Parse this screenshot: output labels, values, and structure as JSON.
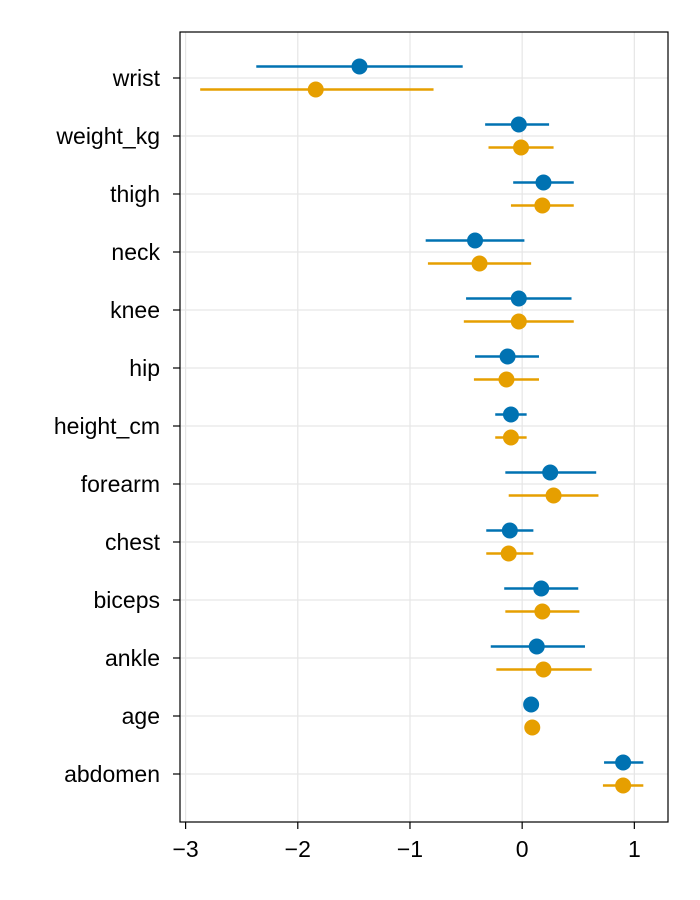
{
  "chart_data": {
    "type": "scatter",
    "subtype": "forest-plot-with-intervals",
    "title": "",
    "xlabel": "",
    "ylabel": "",
    "xlim": [
      -3.05,
      1.3
    ],
    "xticks": [
      -3,
      -2,
      -1,
      0,
      1
    ],
    "xtick_labels": [
      "−3",
      "−2",
      "−1",
      "0",
      "1"
    ],
    "grid": true,
    "legend": "none",
    "categories": [
      "wrist",
      "weight_kg",
      "thigh",
      "neck",
      "knee",
      "hip",
      "height_cm",
      "forearm",
      "chest",
      "biceps",
      "ankle",
      "age",
      "abdomen"
    ],
    "series": [
      {
        "color": "#0072b2",
        "points": [
          {
            "category": "wrist",
            "estimate": -1.45,
            "lower": -2.37,
            "upper": -0.53
          },
          {
            "category": "weight_kg",
            "estimate": -0.03,
            "lower": -0.33,
            "upper": 0.24
          },
          {
            "category": "thigh",
            "estimate": 0.19,
            "lower": -0.08,
            "upper": 0.46
          },
          {
            "category": "neck",
            "estimate": -0.42,
            "lower": -0.86,
            "upper": 0.02
          },
          {
            "category": "knee",
            "estimate": -0.03,
            "lower": -0.5,
            "upper": 0.44
          },
          {
            "category": "hip",
            "estimate": -0.13,
            "lower": -0.42,
            "upper": 0.15
          },
          {
            "category": "height_cm",
            "estimate": -0.1,
            "lower": -0.24,
            "upper": 0.04
          },
          {
            "category": "forearm",
            "estimate": 0.25,
            "lower": -0.15,
            "upper": 0.66
          },
          {
            "category": "chest",
            "estimate": -0.11,
            "lower": -0.32,
            "upper": 0.1
          },
          {
            "category": "biceps",
            "estimate": 0.17,
            "lower": -0.16,
            "upper": 0.5
          },
          {
            "category": "ankle",
            "estimate": 0.13,
            "lower": -0.28,
            "upper": 0.56
          },
          {
            "category": "age",
            "estimate": 0.08,
            "lower": 0.08,
            "upper": 0.08
          },
          {
            "category": "abdomen",
            "estimate": 0.9,
            "lower": 0.73,
            "upper": 1.08
          }
        ]
      },
      {
        "color": "#e69f00",
        "points": [
          {
            "category": "wrist",
            "estimate": -1.84,
            "lower": -2.87,
            "upper": -0.79
          },
          {
            "category": "weight_kg",
            "estimate": -0.01,
            "lower": -0.3,
            "upper": 0.28
          },
          {
            "category": "thigh",
            "estimate": 0.18,
            "lower": -0.1,
            "upper": 0.46
          },
          {
            "category": "neck",
            "estimate": -0.38,
            "lower": -0.84,
            "upper": 0.08
          },
          {
            "category": "knee",
            "estimate": -0.03,
            "lower": -0.52,
            "upper": 0.46
          },
          {
            "category": "hip",
            "estimate": -0.14,
            "lower": -0.43,
            "upper": 0.15
          },
          {
            "category": "height_cm",
            "estimate": -0.1,
            "lower": -0.24,
            "upper": 0.04
          },
          {
            "category": "forearm",
            "estimate": 0.28,
            "lower": -0.12,
            "upper": 0.68
          },
          {
            "category": "chest",
            "estimate": -0.12,
            "lower": -0.32,
            "upper": 0.1
          },
          {
            "category": "biceps",
            "estimate": 0.18,
            "lower": -0.15,
            "upper": 0.51
          },
          {
            "category": "ankle",
            "estimate": 0.19,
            "lower": -0.23,
            "upper": 0.62
          },
          {
            "category": "age",
            "estimate": 0.09,
            "lower": 0.09,
            "upper": 0.09
          },
          {
            "category": "abdomen",
            "estimate": 0.9,
            "lower": 0.72,
            "upper": 1.08
          }
        ]
      }
    ]
  }
}
